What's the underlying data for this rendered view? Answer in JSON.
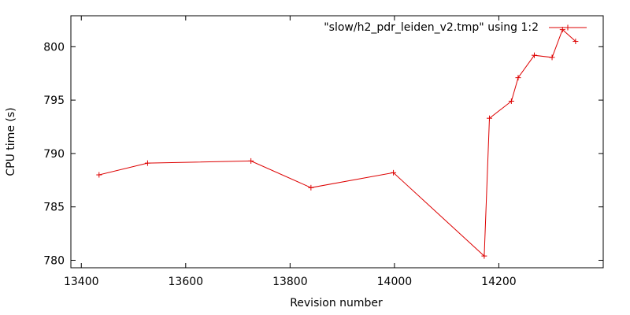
{
  "chart_data": {
    "type": "line",
    "title": "",
    "xlabel": "Revision number",
    "ylabel": "CPU time (s)",
    "xlim": [
      13380,
      14400
    ],
    "ylim": [
      779.3,
      802.9
    ],
    "xticks": [
      13400,
      13600,
      13800,
      14000,
      14200
    ],
    "yticks": [
      780,
      785,
      790,
      795,
      800
    ],
    "grid": false,
    "legend_position": "top-right",
    "series": [
      {
        "name": "\"slow/h2_pdr_leiden_v2.tmp\" using 1:2",
        "color": "#dd0000",
        "marker": "plus",
        "x": [
          13434,
          13527,
          13725,
          13840,
          13998,
          14172,
          14182,
          14224,
          14237,
          14268,
          14302,
          14322,
          14347
        ],
        "y": [
          788.0,
          789.1,
          789.3,
          786.8,
          788.2,
          780.4,
          793.3,
          794.9,
          797.1,
          799.2,
          799.0,
          801.6,
          800.5
        ]
      }
    ]
  }
}
